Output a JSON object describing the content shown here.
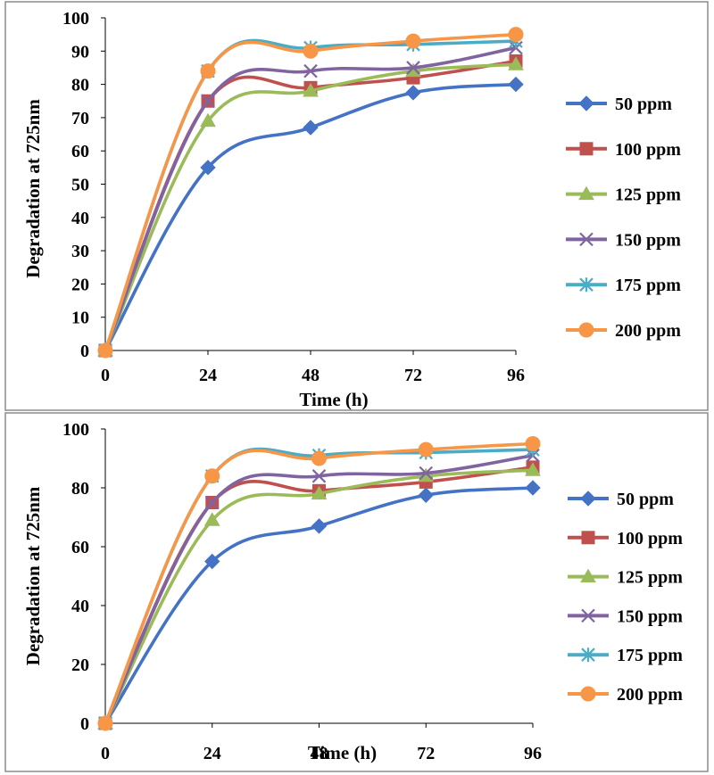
{
  "chart_data": [
    {
      "type": "line",
      "title": "",
      "xlabel": "Time (h)",
      "ylabel": "Degradation at 725nm",
      "x": [
        0,
        24,
        48,
        72,
        96
      ],
      "xticks": [
        "0",
        "24",
        "48",
        "72",
        "96"
      ],
      "ylim": [
        0,
        100
      ],
      "yticks": [
        "0",
        "10",
        "20",
        "30",
        "40",
        "50",
        "60",
        "70",
        "80",
        "90",
        "100"
      ],
      "grid": false,
      "legend": "right",
      "series": [
        {
          "name": "50 ppm",
          "color": "#4472C4",
          "marker": "diamond",
          "values": [
            0,
            55,
            67,
            77.5,
            80
          ]
        },
        {
          "name": "100 ppm",
          "color": "#C0504D",
          "marker": "square",
          "values": [
            0,
            75,
            79,
            82,
            87
          ]
        },
        {
          "name": "125 ppm",
          "color": "#9BBB59",
          "marker": "triangle",
          "values": [
            0,
            69,
            78,
            84,
            86
          ]
        },
        {
          "name": "150 ppm",
          "color": "#8064A2",
          "marker": "x",
          "values": [
            0,
            75,
            84,
            85,
            91
          ]
        },
        {
          "name": "175 ppm",
          "color": "#4BACC6",
          "marker": "star",
          "values": [
            0,
            84,
            91,
            92,
            93
          ]
        },
        {
          "name": "200 ppm",
          "color": "#F79646",
          "marker": "circle",
          "values": [
            0,
            84,
            90,
            93,
            95
          ]
        }
      ]
    },
    {
      "type": "line",
      "title": "",
      "xlabel": "Time (h)",
      "ylabel": "Degradation at 725nm",
      "x": [
        0,
        24,
        48,
        72,
        96
      ],
      "xticks": [
        "0",
        "24",
        "48",
        "72",
        "96"
      ],
      "ylim": [
        0,
        100
      ],
      "yticks": [
        "0",
        "20",
        "40",
        "60",
        "80",
        "100"
      ],
      "grid": false,
      "legend": "right",
      "series": [
        {
          "name": "50 ppm",
          "color": "#4472C4",
          "marker": "diamond",
          "values": [
            0,
            55,
            67,
            77.5,
            80
          ]
        },
        {
          "name": "100 ppm",
          "color": "#C0504D",
          "marker": "square",
          "values": [
            0,
            75,
            79,
            82,
            87
          ]
        },
        {
          "name": "125 ppm",
          "color": "#9BBB59",
          "marker": "triangle",
          "values": [
            0,
            69,
            78,
            84,
            86
          ]
        },
        {
          "name": "150 ppm",
          "color": "#8064A2",
          "marker": "x",
          "values": [
            0,
            75,
            84,
            85,
            91
          ]
        },
        {
          "name": "175 ppm",
          "color": "#4BACC6",
          "marker": "star",
          "values": [
            0,
            84,
            91,
            92,
            93
          ]
        },
        {
          "name": "200 ppm",
          "color": "#F79646",
          "marker": "circle",
          "values": [
            0,
            84,
            90,
            93,
            95
          ]
        }
      ]
    }
  ]
}
